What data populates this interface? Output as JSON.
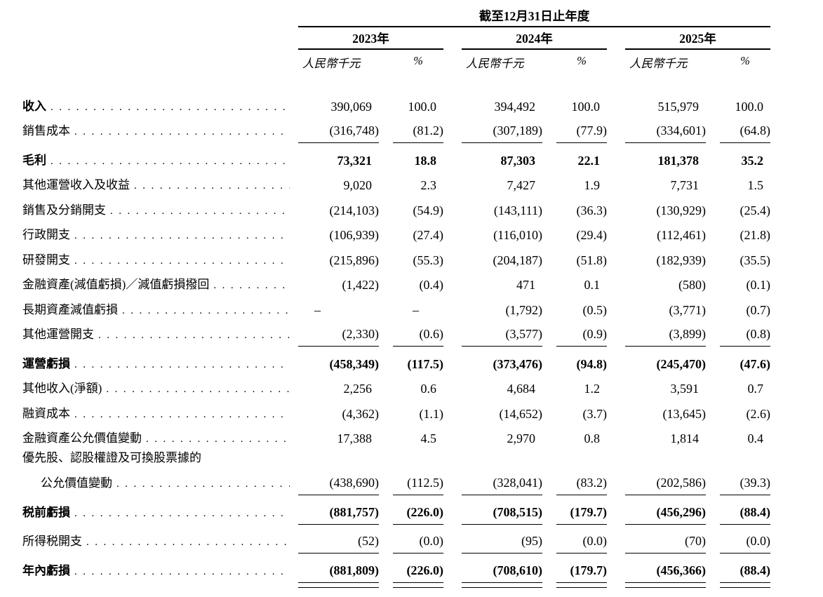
{
  "header": {
    "period_title": "截至12月31日止年度",
    "years": [
      {
        "label": "2023年",
        "unit": "人民幣千元",
        "pct_symbol": "%"
      },
      {
        "label": "2024年",
        "unit": "人民幣千元",
        "pct_symbol": "%"
      },
      {
        "label": "2025年",
        "unit": "人民幣千元",
        "pct_symbol": "%"
      }
    ]
  },
  "table": {
    "rows": [
      {
        "label": "收入",
        "bold": true,
        "cells": [
          "390,069",
          "100.0",
          "394,492",
          "100.0",
          "515,979",
          "100.0"
        ]
      },
      {
        "label": "銷售成本",
        "rule_below": true,
        "cells": [
          "(316,748)",
          "(81.2)",
          "(307,189)",
          "(77.9)",
          "(334,601)",
          "(64.8)"
        ]
      },
      {
        "label": "毛利",
        "bold": true,
        "bold_values": true,
        "cells": [
          "73,321",
          "18.8",
          "87,303",
          "22.1",
          "181,378",
          "35.2"
        ]
      },
      {
        "label": "其他運營收入及收益",
        "cells": [
          "9,020",
          "2.3",
          "7,427",
          "1.9",
          "7,731",
          "1.5"
        ]
      },
      {
        "label": "銷售及分銷開支",
        "cells": [
          "(214,103)",
          "(54.9)",
          "(143,111)",
          "(36.3)",
          "(130,929)",
          "(25.4)"
        ]
      },
      {
        "label": "行政開支",
        "cells": [
          "(106,939)",
          "(27.4)",
          "(116,010)",
          "(29.4)",
          "(112,461)",
          "(21.8)"
        ]
      },
      {
        "label": "研發開支",
        "cells": [
          "(215,896)",
          "(55.3)",
          "(204,187)",
          "(51.8)",
          "(182,939)",
          "(35.5)"
        ]
      },
      {
        "label": "金融資產(減值虧損)／減值虧損撥回",
        "cells": [
          "(1,422)",
          "(0.4)",
          "471",
          "0.1",
          "(580)",
          "(0.1)"
        ]
      },
      {
        "label": "長期資產減值虧損",
        "cells": [
          "–",
          "–",
          "(1,792)",
          "(0.5)",
          "(3,771)",
          "(0.7)"
        ]
      },
      {
        "label": "其他運營開支",
        "rule_below": true,
        "cells": [
          "(2,330)",
          "(0.6)",
          "(3,577)",
          "(0.9)",
          "(3,899)",
          "(0.8)"
        ]
      },
      {
        "label": "運營虧損",
        "bold": true,
        "bold_values": true,
        "cells": [
          "(458,349)",
          "(117.5)",
          "(373,476)",
          "(94.8)",
          "(245,470)",
          "(47.6)"
        ]
      },
      {
        "label": "其他收入(淨額)",
        "cells": [
          "2,256",
          "0.6",
          "4,684",
          "1.2",
          "3,591",
          "0.7"
        ]
      },
      {
        "label": "融資成本",
        "cells": [
          "(4,362)",
          "(1.1)",
          "(14,652)",
          "(3.7)",
          "(13,645)",
          "(2.6)"
        ]
      },
      {
        "label": "金融資產公允價值變動",
        "cells": [
          "17,388",
          "4.5",
          "2,970",
          "0.8",
          "1,814",
          "0.4"
        ]
      },
      {
        "label": "優先股、認股權證及可換股票據的",
        "label_line2": "公允價值變動",
        "rule_below": true,
        "cells": [
          "(438,690)",
          "(112.5)",
          "(328,041)",
          "(83.2)",
          "(202,586)",
          "(39.3)"
        ]
      },
      {
        "label": "税前虧損",
        "bold": true,
        "bold_values": true,
        "rule_below": true,
        "cells": [
          "(881,757)",
          "(226.0)",
          "(708,515)",
          "(179.7)",
          "(456,296)",
          "(88.4)"
        ]
      },
      {
        "label": "所得税開支",
        "rule_below": true,
        "cells": [
          "(52)",
          "(0.0)",
          "(95)",
          "(0.0)",
          "(70)",
          "(0.0)"
        ]
      },
      {
        "label": "年內虧損",
        "bold": true,
        "bold_values": true,
        "double_rule_below": true,
        "cells": [
          "(881,809)",
          "(226.0)",
          "(708,610)",
          "(179.7)",
          "(456,366)",
          "(88.4)"
        ]
      }
    ]
  }
}
